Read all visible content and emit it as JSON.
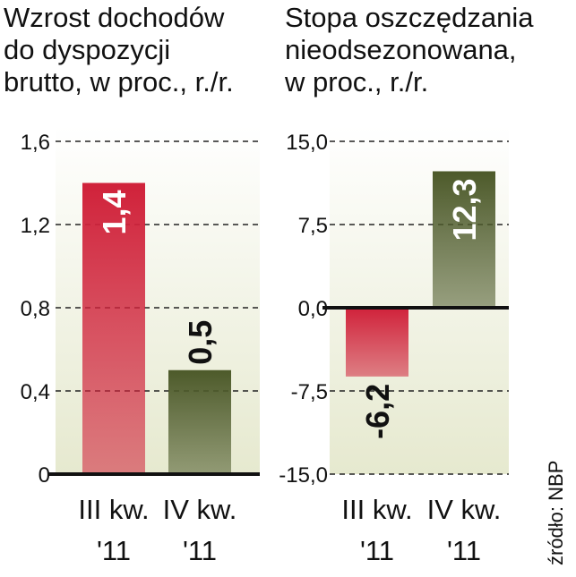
{
  "chart_data": [
    {
      "type": "bar",
      "title": "Wzrost dochodów\ndo dyspozycji\nbrutto, w proc., r./r.",
      "categories": [
        "III kw.\n'11",
        "IV kw.\n'11"
      ],
      "values": [
        1.4,
        0.5
      ],
      "value_labels": [
        "1,4",
        "0,5"
      ],
      "colors": [
        "#d0223a",
        "#4d5a2a"
      ],
      "ylim": [
        0,
        1.6
      ],
      "yticks": [
        0,
        {
          "value": 0.4,
          "label": "0,4"
        },
        {
          "value": 0.8,
          "label": "0,8"
        },
        {
          "value": 1.2,
          "label": "1,2"
        },
        {
          "value": 1.6,
          "label": "1,6"
        }
      ],
      "grid": true
    },
    {
      "type": "bar",
      "title": "Stopa oszczędzania\nnieodsezonowana,\nw proc., r./r.",
      "categories": [
        "III kw.\n'11",
        "IV kw.\n'11"
      ],
      "values": [
        -6.2,
        12.3
      ],
      "value_labels": [
        "-6,2",
        "12,3"
      ],
      "colors": [
        "#d0223a",
        "#4d5a2a"
      ],
      "ylim": [
        -15,
        15
      ],
      "yticks": [
        {
          "value": -15,
          "label": "-15,0"
        },
        {
          "value": -7.5,
          "label": "-7,5"
        },
        {
          "value": 0,
          "label": "0,0"
        },
        {
          "value": 7.5,
          "label": "7,5"
        },
        {
          "value": 15,
          "label": "15,0"
        }
      ],
      "grid": true
    }
  ],
  "source": "źródło: NBP"
}
